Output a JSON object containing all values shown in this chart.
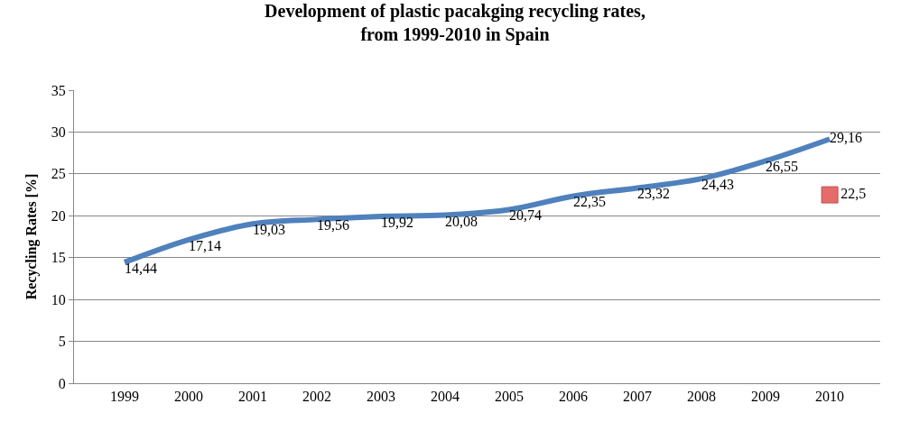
{
  "chart_data": {
    "type": "line",
    "title": "Development of plastic pacakging recycling rates,\nfrom 1999-2010 in Spain",
    "ylabel": "Recycling Rates [%]",
    "categories": [
      "1999",
      "2000",
      "2001",
      "2002",
      "2003",
      "2004",
      "2005",
      "2006",
      "2007",
      "2008",
      "2009",
      "2010"
    ],
    "ylim": [
      0,
      35
    ],
    "yticks": [
      0,
      5,
      10,
      15,
      20,
      25,
      30,
      35
    ],
    "grid": "y",
    "series": [
      {
        "color": "#4f81bd",
        "values": [
          14.44,
          17.14,
          19.03,
          19.56,
          19.92,
          20.08,
          20.74,
          22.35,
          23.32,
          24.43,
          26.55,
          29.16
        ],
        "value_labels": [
          "14,44",
          "17,14",
          "19,03",
          "19,56",
          "19,92",
          "20,08",
          "20,74",
          "22,35",
          "23,32",
          "24,43",
          "26,55",
          "29,16"
        ],
        "marker": "none",
        "line_style": "solid"
      },
      {
        "type": "scatter",
        "color": "#e46c6a",
        "values": [
          null,
          null,
          null,
          null,
          null,
          null,
          null,
          null,
          null,
          null,
          null,
          22.5
        ],
        "value_labels": [
          null,
          null,
          null,
          null,
          null,
          null,
          null,
          null,
          null,
          null,
          null,
          "22,5"
        ],
        "marker": "square"
      }
    ]
  }
}
